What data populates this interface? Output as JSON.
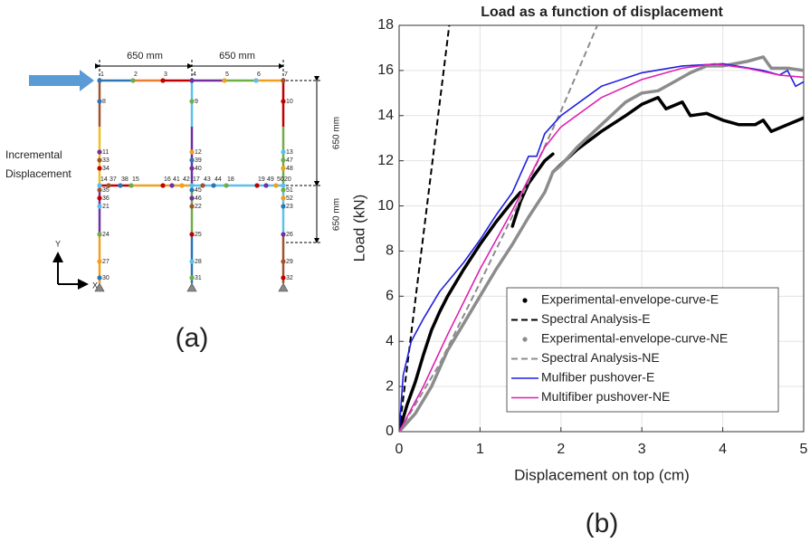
{
  "diagram": {
    "dimensions": [
      "650 mm",
      "650 mm",
      "650 mm",
      "650 mm"
    ],
    "load_label": [
      "Incremental",
      "Displacement"
    ],
    "axes": [
      "Y",
      "X"
    ],
    "nodes": [
      "1",
      "2",
      "3",
      "4",
      "5",
      "6",
      "7",
      "8",
      "9",
      "10",
      "11",
      "12",
      "13",
      "33",
      "39",
      "47",
      "34",
      "40",
      "48",
      "14",
      "37",
      "38",
      "15",
      "16",
      "41",
      "42",
      "17",
      "43",
      "44",
      "18",
      "19",
      "49",
      "50",
      "20",
      "35",
      "45",
      "51",
      "36",
      "46",
      "52",
      "21",
      "22",
      "23",
      "24",
      "25",
      "26",
      "27",
      "28",
      "29",
      "30",
      "31",
      "32"
    ],
    "caption": "(a)"
  },
  "chart_data": {
    "type": "line",
    "title": "Load as a function of displacement",
    "xlabel": "Displacement on top (cm)",
    "ylabel": "Load (kN)",
    "caption": "(b)",
    "xlim": [
      0,
      5
    ],
    "ylim": [
      0,
      18
    ],
    "xticks": [
      0,
      1,
      2,
      3,
      4,
      5
    ],
    "yticks": [
      0,
      2,
      4,
      6,
      8,
      10,
      12,
      14,
      16,
      18
    ],
    "grid": true,
    "legend": "lower right",
    "series": [
      {
        "name": "Experimental-envelope-curve-E",
        "color": "#000000",
        "linestyle": "dotted-thick",
        "x": [
          0,
          0.1,
          0.2,
          0.3,
          0.4,
          0.5,
          0.6,
          0.8,
          1.0,
          1.2,
          1.4,
          1.5,
          null,
          1.4,
          1.5,
          1.6,
          1.8,
          1.9,
          null,
          1.9,
          2.2,
          2.5,
          2.8,
          3.0,
          3.2,
          3.3,
          3.5,
          3.6,
          3.8,
          4.0,
          4.2,
          4.4,
          4.5,
          4.6,
          4.8,
          5.0
        ],
        "values": [
          0,
          1.2,
          2.2,
          3.4,
          4.5,
          5.3,
          6.0,
          7.2,
          8.3,
          9.3,
          10.2,
          10.6,
          null,
          9.1,
          10.2,
          11.0,
          12.0,
          12.3,
          null,
          11.5,
          12.5,
          13.3,
          14.0,
          14.5,
          14.8,
          14.3,
          14.6,
          14.0,
          14.1,
          13.8,
          13.6,
          13.6,
          13.8,
          13.3,
          13.6,
          13.9
        ]
      },
      {
        "name": "Spectral Analysis-E",
        "color": "#000000",
        "linestyle": "dashed",
        "x": [
          0,
          0.62
        ],
        "values": [
          0,
          18
        ]
      },
      {
        "name": "Experimental-envelope-curve-NE",
        "color": "#8c8c8c",
        "linestyle": "dotted-thick",
        "x": [
          0,
          0.2,
          0.4,
          0.6,
          0.8,
          1.0,
          1.2,
          1.4,
          1.6,
          1.8,
          1.9,
          2.0,
          2.2,
          2.5,
          2.8,
          3.0,
          3.2,
          3.4,
          3.6,
          3.8,
          4.0,
          4.3,
          4.5,
          4.6,
          4.8,
          5.0
        ],
        "values": [
          0,
          0.8,
          2.0,
          3.6,
          4.8,
          6.0,
          7.2,
          8.3,
          9.5,
          10.6,
          11.5,
          11.8,
          12.6,
          13.6,
          14.6,
          15.0,
          15.1,
          15.5,
          15.9,
          16.2,
          16.2,
          16.4,
          16.6,
          16.1,
          16.1,
          16.0
        ]
      },
      {
        "name": "Spectral Analysis-NE",
        "color": "#8c8c8c",
        "linestyle": "dashed",
        "x": [
          0,
          0.5,
          1.0,
          1.5,
          2.0,
          2.45
        ],
        "values": [
          0,
          3.0,
          6.6,
          10.3,
          14.2,
          18
        ]
      },
      {
        "name": "Mulfiber pushover-E",
        "color": "#1f1fe0",
        "linestyle": "solid",
        "x": [
          0,
          0.05,
          0.15,
          0.3,
          0.5,
          0.8,
          1.0,
          1.2,
          1.4,
          1.6,
          1.7,
          1.8,
          2.0,
          2.5,
          3.0,
          3.5,
          4.0,
          4.5,
          4.7,
          4.8,
          4.9,
          5.0
        ],
        "values": [
          0,
          2.5,
          4.0,
          5.0,
          6.2,
          7.5,
          8.5,
          9.6,
          10.6,
          12.2,
          12.2,
          13.2,
          14.0,
          15.3,
          15.9,
          16.2,
          16.3,
          16.0,
          15.8,
          16.0,
          15.3,
          15.5
        ]
      },
      {
        "name": "Multifiber pushover-NE",
        "color": "#e020b0",
        "linestyle": "solid",
        "x": [
          0,
          0.3,
          0.6,
          1.0,
          1.4,
          1.8,
          2.0,
          2.5,
          3.0,
          3.5,
          3.9,
          4.3,
          4.7,
          5.0
        ],
        "values": [
          0,
          2.0,
          4.3,
          7.2,
          9.8,
          12.6,
          13.5,
          14.8,
          15.6,
          16.1,
          16.3,
          16.1,
          15.8,
          15.7
        ]
      }
    ]
  }
}
